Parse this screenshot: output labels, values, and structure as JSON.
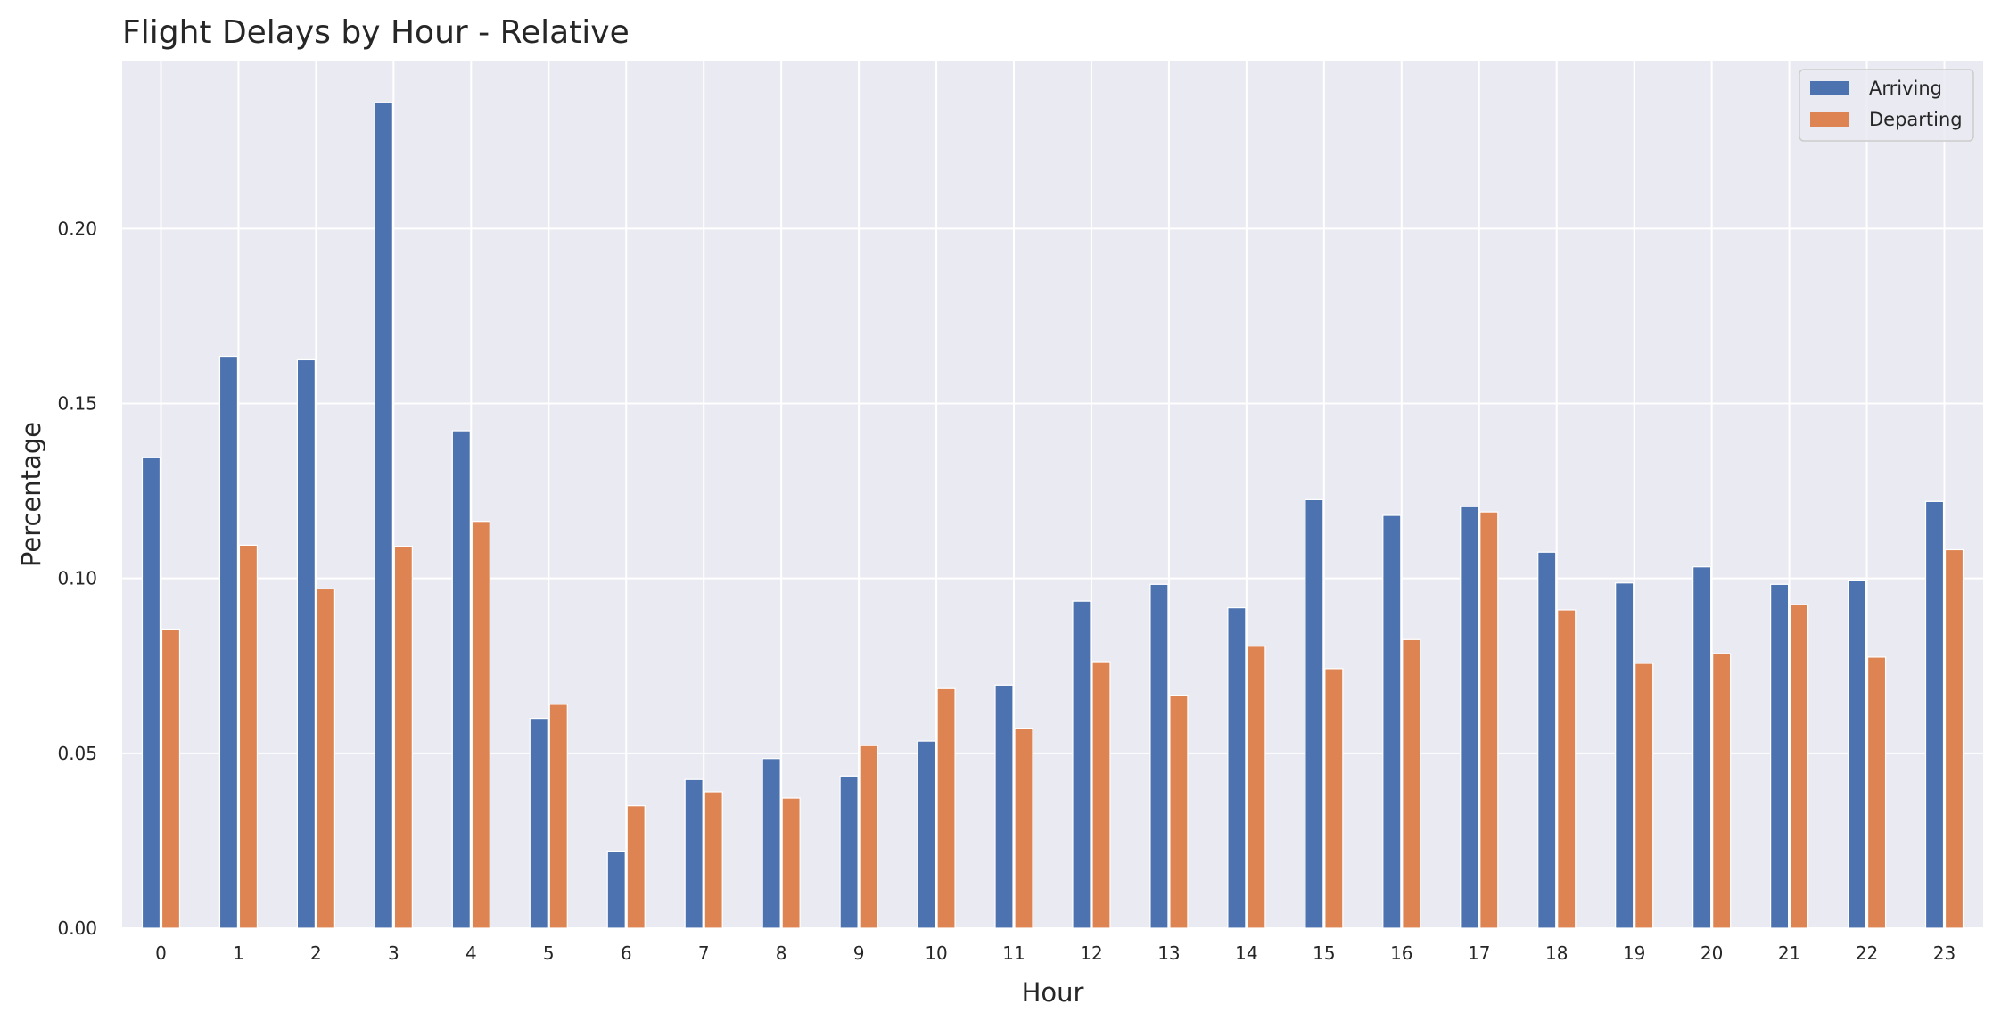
{
  "chart_data": {
    "type": "bar",
    "title": "Flight Delays by Hour - Relative",
    "xlabel": "Hour",
    "ylabel": "Percentage",
    "categories": [
      "0",
      "1",
      "2",
      "3",
      "4",
      "5",
      "6",
      "7",
      "8",
      "9",
      "10",
      "11",
      "12",
      "13",
      "14",
      "15",
      "16",
      "17",
      "18",
      "19",
      "20",
      "21",
      "22",
      "23"
    ],
    "series": [
      {
        "name": "Arriving",
        "color": "#4c72b0",
        "values": [
          0.1345,
          0.1635,
          0.1625,
          0.236,
          0.1422,
          0.06,
          0.022,
          0.0425,
          0.0485,
          0.0435,
          0.0535,
          0.0695,
          0.0935,
          0.0983,
          0.0916,
          0.1225,
          0.118,
          0.1205,
          0.1075,
          0.0987,
          0.1033,
          0.0983,
          0.0993,
          0.122
        ]
      },
      {
        "name": "Departing",
        "color": "#dd8452",
        "values": [
          0.0855,
          0.1095,
          0.097,
          0.1092,
          0.1163,
          0.064,
          0.035,
          0.039,
          0.0372,
          0.0522,
          0.0685,
          0.0572,
          0.0762,
          0.0666,
          0.0806,
          0.0742,
          0.0825,
          0.119,
          0.091,
          0.0757,
          0.0785,
          0.0925,
          0.0775,
          0.1082
        ]
      }
    ],
    "ylim": [
      0,
      0.248
    ],
    "yticks": [
      0.0,
      0.05,
      0.1,
      0.15,
      0.2
    ],
    "ytick_labels": [
      "0.00",
      "0.05",
      "0.10",
      "0.15",
      "0.20"
    ],
    "grid": true,
    "legend_position": "top-right",
    "background": "#eaeaf2",
    "grid_color": "#ffffff"
  }
}
